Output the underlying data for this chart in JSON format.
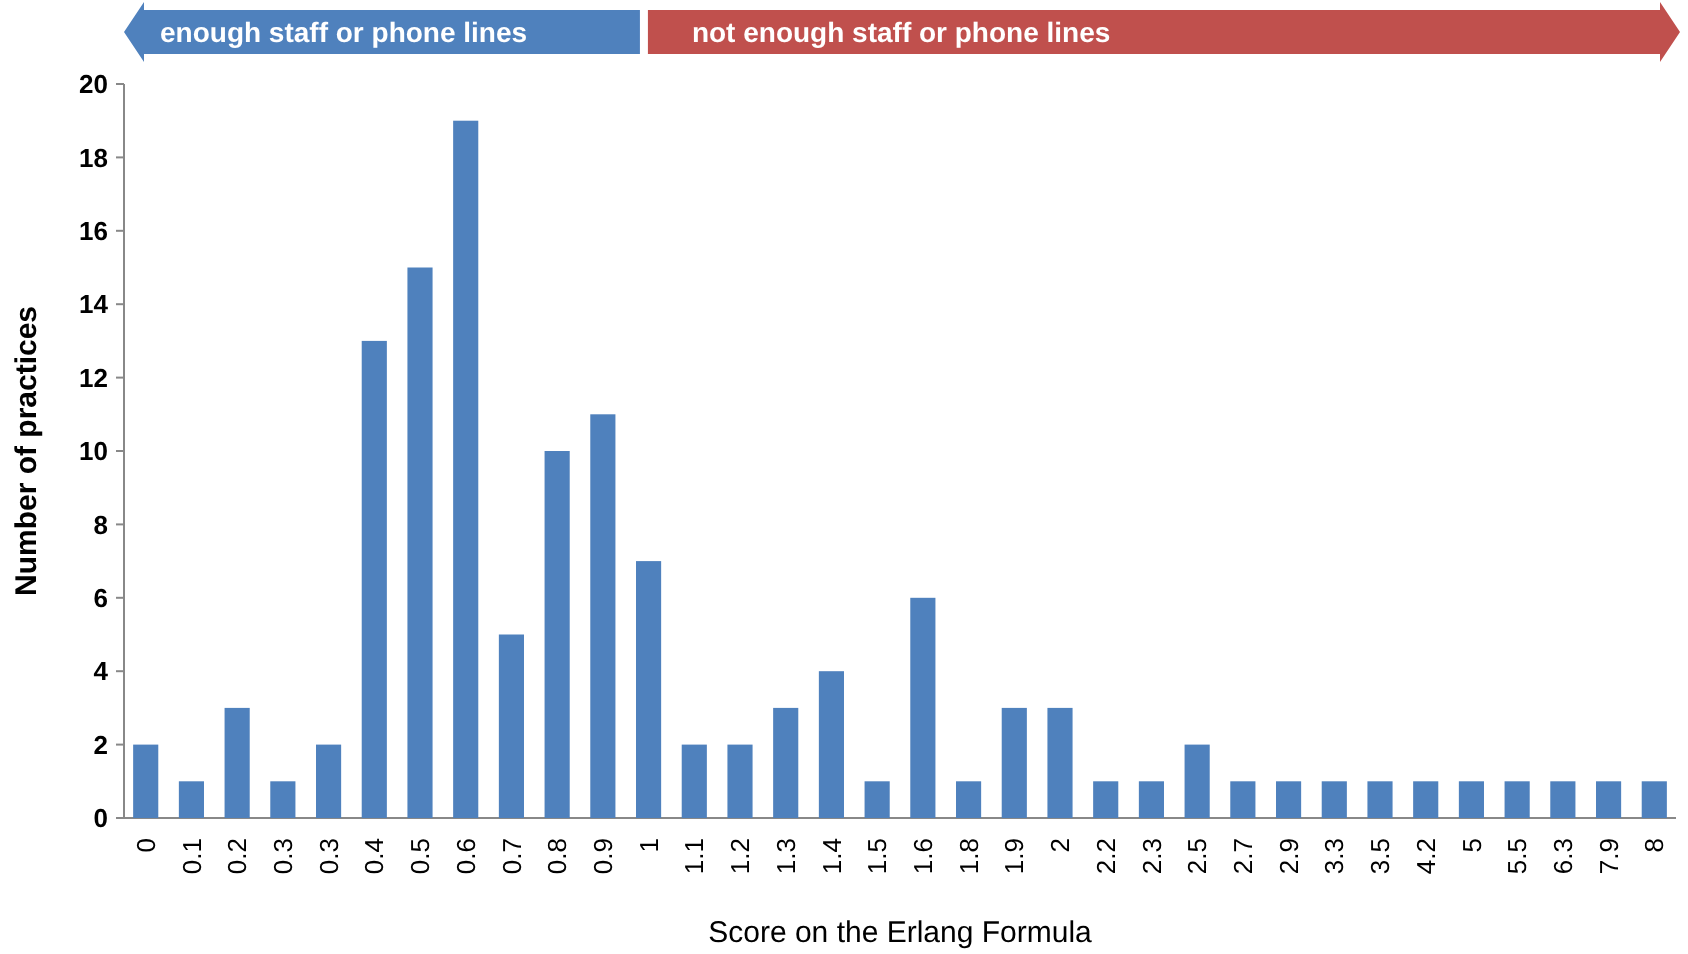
{
  "chart_data": {
    "type": "bar",
    "xlabel": "Score on the Erlang Formula",
    "ylabel": "Number of practices",
    "categories": [
      "0",
      "0.1",
      "0.2",
      "0.3",
      "0.3",
      "0.4",
      "0.5",
      "0.6",
      "0.7",
      "0.8",
      "0.9",
      "1",
      "1.1",
      "1.2",
      "1.3",
      "1.4",
      "1.5",
      "1.6",
      "1.8",
      "1.9",
      "2",
      "2.2",
      "2.3",
      "2.5",
      "2.7",
      "2.9",
      "3.3",
      "3.5",
      "4.2",
      "5",
      "5.5",
      "6.3",
      "7.9",
      "8"
    ],
    "values": [
      2,
      1,
      3,
      1,
      2,
      13,
      15,
      19,
      5,
      10,
      11,
      7,
      2,
      2,
      3,
      4,
      1,
      6,
      1,
      3,
      3,
      1,
      1,
      2,
      1,
      1,
      1,
      1,
      1,
      1,
      1,
      1,
      1,
      1
    ],
    "color": "#4f81bd",
    "ylim": [
      0,
      20
    ],
    "yticks": [
      0,
      2,
      4,
      6,
      8,
      10,
      12,
      14,
      16,
      18,
      20
    ],
    "grid": false,
    "annotations": [
      "enough staff or phone lines",
      "not enough staff or phone lines"
    ]
  }
}
